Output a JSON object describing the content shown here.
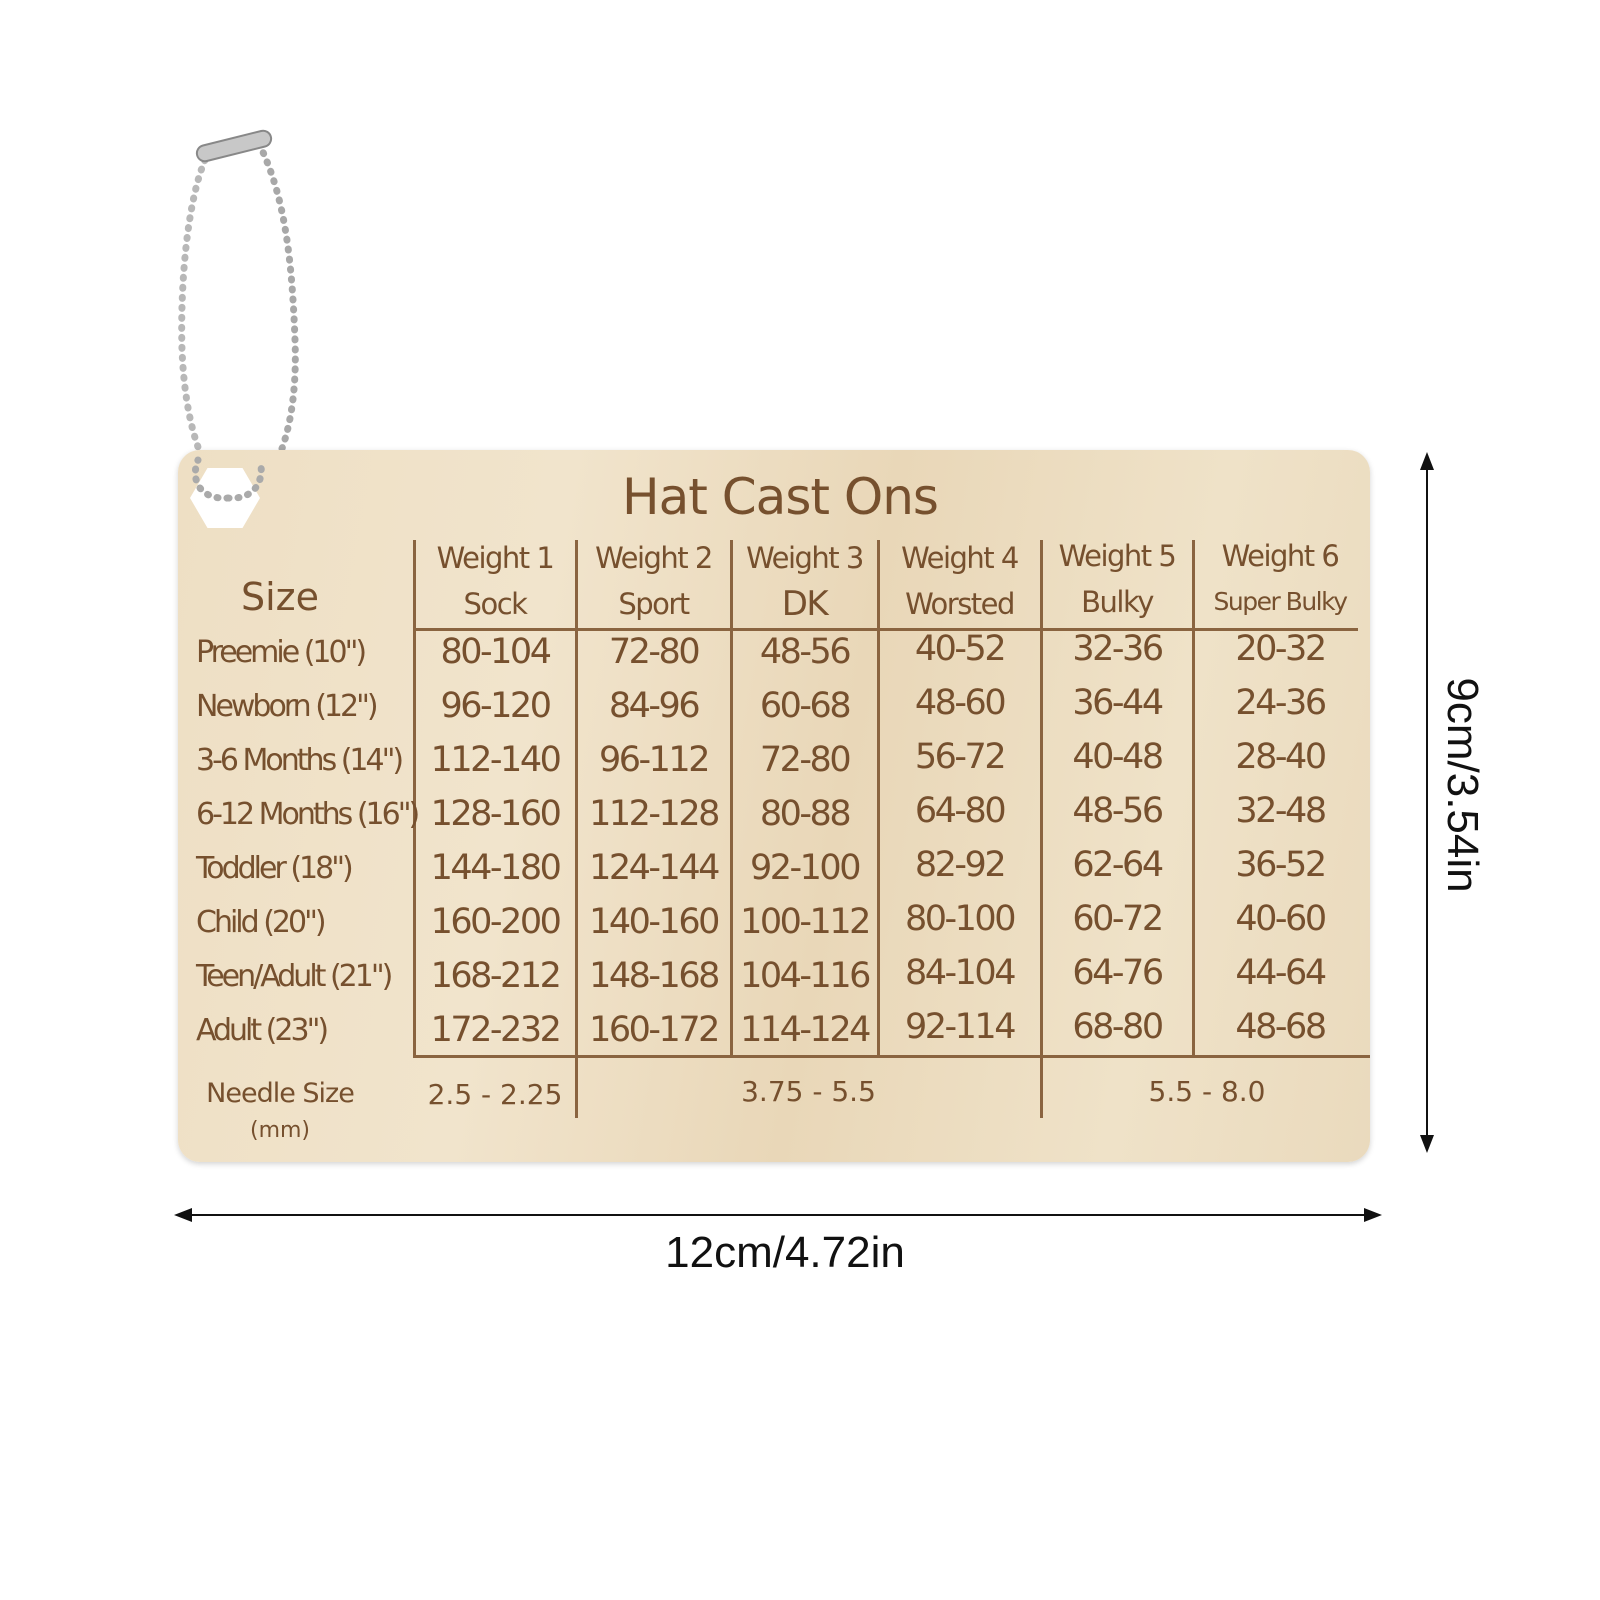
{
  "card": {
    "title": "Hat Cast Ons",
    "size_header": "Size",
    "columns": [
      {
        "weight": "Weight 1",
        "name": "Sock"
      },
      {
        "weight": "Weight 2",
        "name": "Sport"
      },
      {
        "weight": "Weight 3",
        "name": "DK"
      },
      {
        "weight": "Weight 4",
        "name": "Worsted"
      },
      {
        "weight": "Weight 5",
        "name": "Bulky"
      },
      {
        "weight": "Weight 6",
        "name": "Super Bulky"
      }
    ],
    "rows": [
      {
        "size": "Preemie (10\")",
        "values": [
          "80-104",
          "72-80",
          "48-56",
          "40-52",
          "32-36",
          "20-32"
        ]
      },
      {
        "size": "Newborn (12\")",
        "values": [
          "96-120",
          "84-96",
          "60-68",
          "48-60",
          "36-44",
          "24-36"
        ]
      },
      {
        "size": "3-6 Months (14\")",
        "values": [
          "112-140",
          "96-112",
          "72-80",
          "56-72",
          "40-48",
          "28-40"
        ]
      },
      {
        "size": "6-12 Months (16\")",
        "values": [
          "128-160",
          "112-128",
          "80-88",
          "64-80",
          "48-56",
          "32-48"
        ]
      },
      {
        "size": "Toddler (18\")",
        "values": [
          "144-180",
          "124-144",
          "92-100",
          "82-92",
          "62-64",
          "36-52"
        ]
      },
      {
        "size": "Child (20\")",
        "values": [
          "160-200",
          "140-160",
          "100-112",
          "80-100",
          "60-72",
          "40-60"
        ]
      },
      {
        "size": "Teen/Adult (21\")",
        "values": [
          "168-212",
          "148-168",
          "104-116",
          "84-104",
          "64-76",
          "44-64"
        ]
      },
      {
        "size": "Adult (23\")",
        "values": [
          "172-232",
          "160-172",
          "114-124",
          "92-114",
          "68-80",
          "48-68"
        ]
      }
    ],
    "needle": {
      "label": "Needle Size",
      "unit": "(mm)",
      "ranges": [
        "2.5 - 2.25",
        "3.75 - 5.5",
        "5.5 - 8.0"
      ]
    }
  },
  "dimensions": {
    "height": "9cm/3.54in",
    "width": "12cm/4.72in"
  },
  "colors": {
    "wood": "#ecdcc0",
    "engraving": "#76502e"
  }
}
